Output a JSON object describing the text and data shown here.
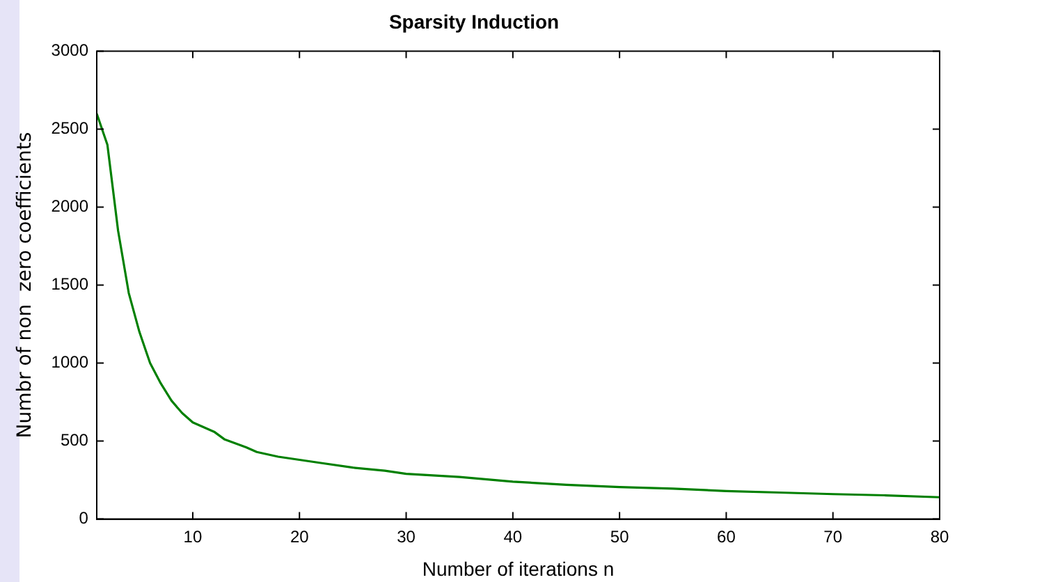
{
  "chart_data": {
    "type": "line",
    "title": "Sparsity Induction",
    "xlabel": "Number of iterations n",
    "ylabel": "Numbr of non  zero coefficients",
    "x": [
      1,
      2,
      3,
      4,
      5,
      6,
      7,
      8,
      9,
      10,
      12,
      13,
      15,
      16,
      18,
      20,
      22,
      25,
      28,
      30,
      35,
      40,
      45,
      50,
      55,
      60,
      65,
      70,
      75,
      80
    ],
    "series": [
      {
        "color": "#008000",
        "values": [
          2600,
          2400,
          1850,
          1450,
          1200,
          1000,
          870,
          760,
          680,
          620,
          560,
          510,
          460,
          430,
          400,
          380,
          360,
          330,
          310,
          290,
          270,
          240,
          220,
          205,
          195,
          180,
          170,
          160,
          152,
          140
        ]
      }
    ],
    "xlim": [
      1,
      80
    ],
    "xticks": [
      10,
      20,
      30,
      40,
      50,
      60,
      70,
      80
    ],
    "ylim": [
      0,
      3000
    ],
    "yticks": [
      0,
      500,
      1000,
      1500,
      2000,
      2500,
      3000
    ],
    "grid": false,
    "legend": false,
    "marker": "none",
    "line_style": "solid"
  }
}
